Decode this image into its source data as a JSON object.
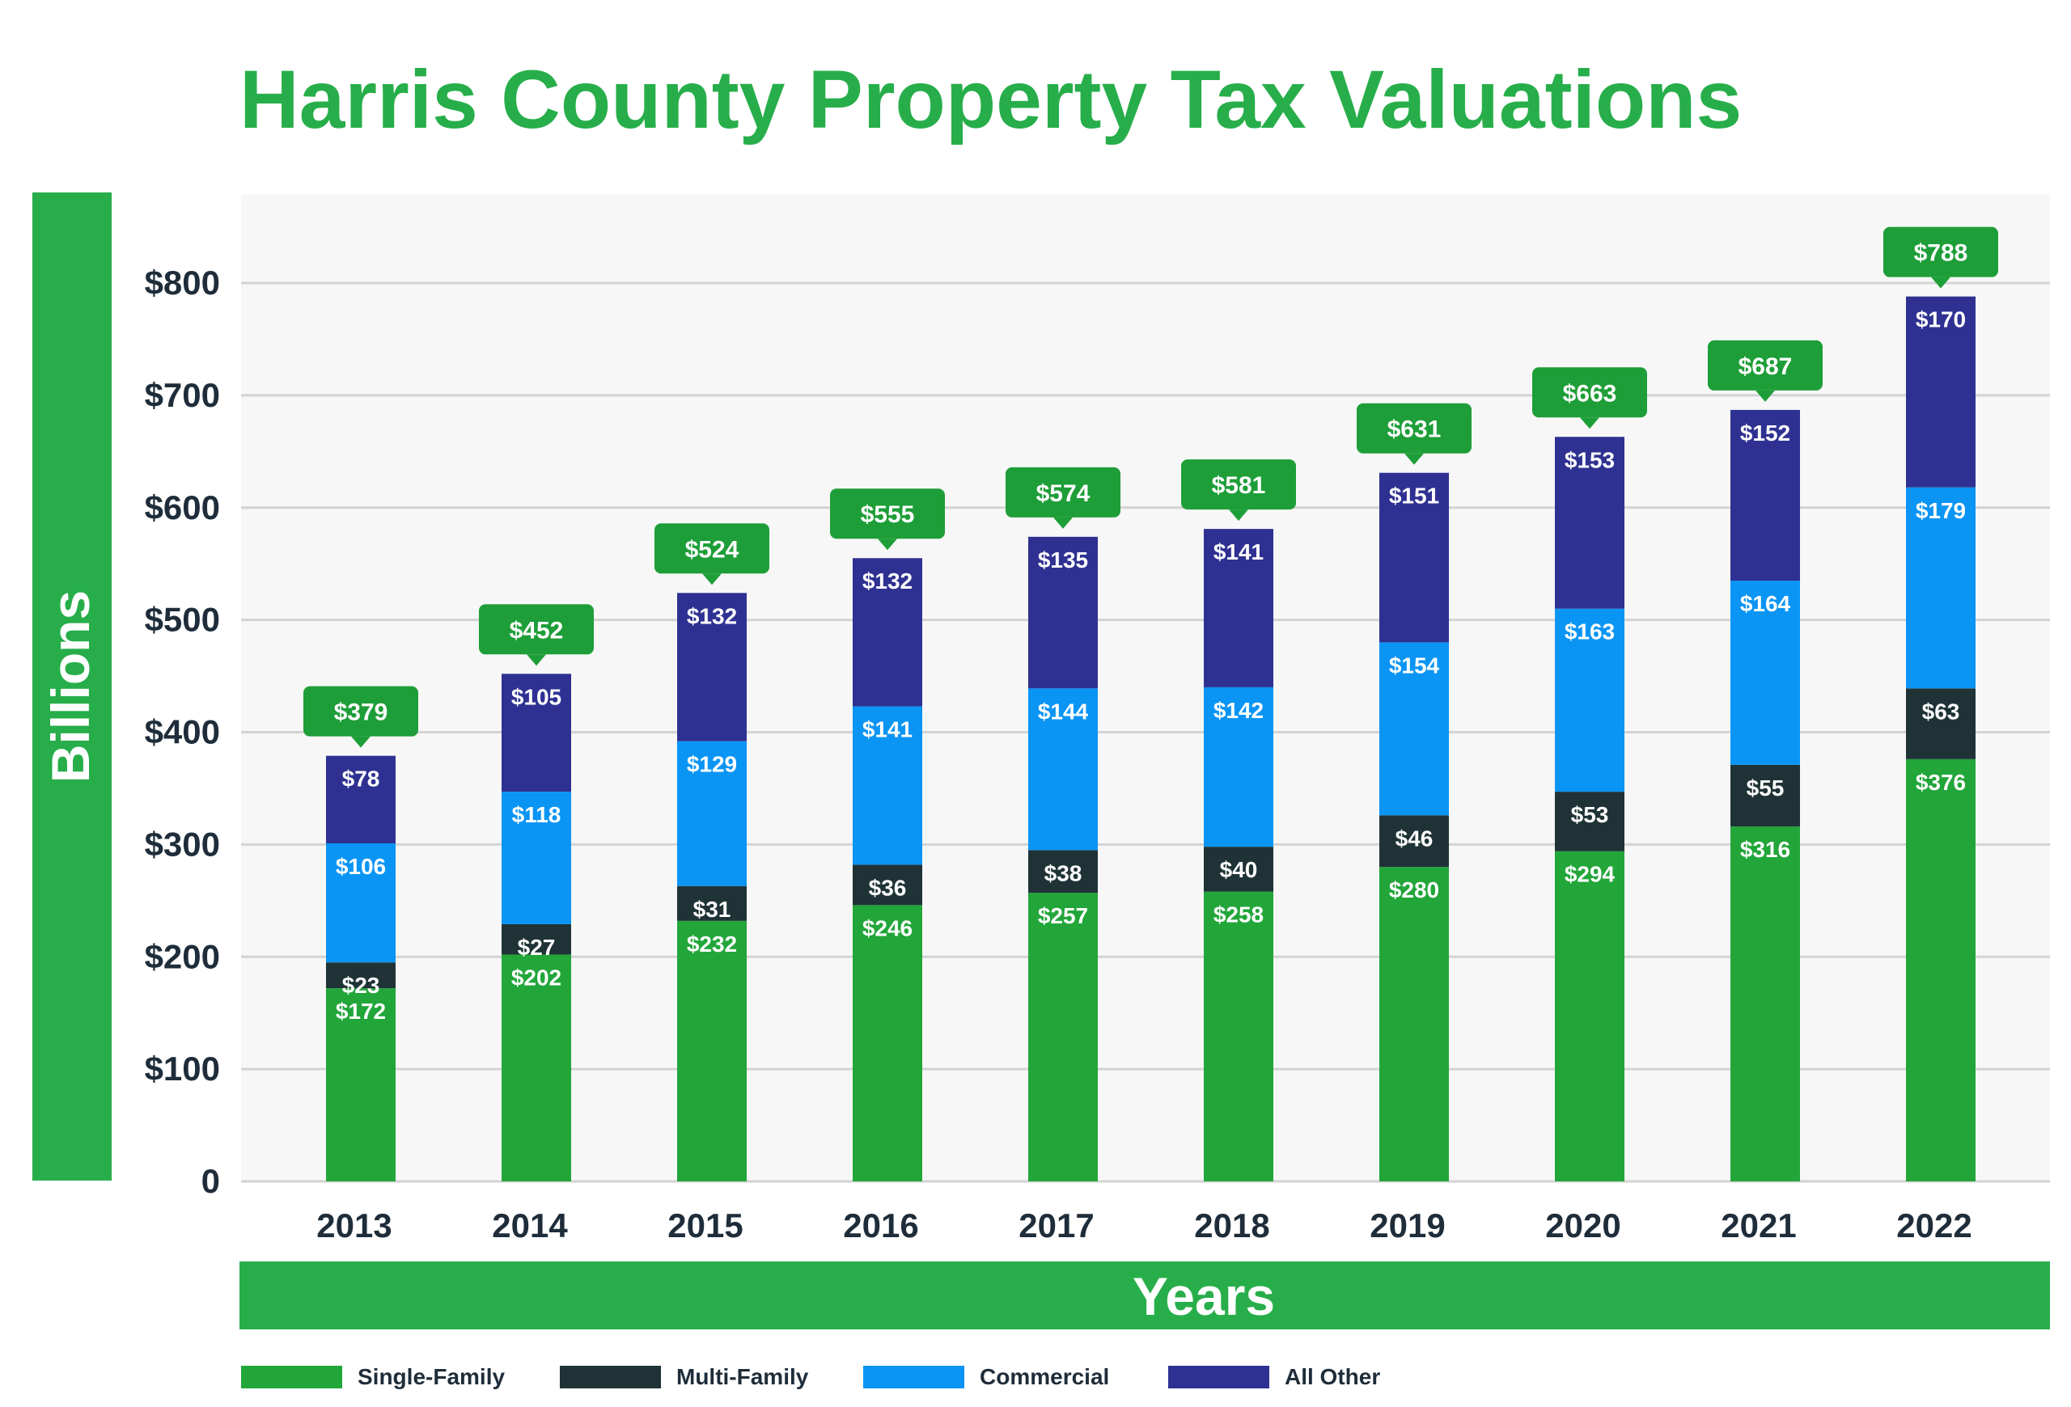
{
  "colors": {
    "title": "#27AE4A",
    "band": "#27AE4A",
    "plot_bg": "#F7F7F7",
    "grid": "#D3D3D3",
    "axis_text": "#1F2D3A",
    "callout": "#1E9E38",
    "label_text": "#FFFFFF"
  },
  "chart_data": {
    "type": "bar",
    "stacked": true,
    "title": "Harris County Property Tax Valuations",
    "xlabel": "Years",
    "ylabel": "Billions",
    "ylim": [
      0,
      850
    ],
    "yticks": [
      0,
      100,
      200,
      300,
      400,
      500,
      600,
      700,
      800
    ],
    "ytick_labels": [
      "0",
      "$100",
      "$200",
      "$300",
      "$400",
      "$500",
      "$600",
      "$700",
      "$800"
    ],
    "grid": true,
    "legend_position": "bottom-left",
    "categories": [
      "2013",
      "2014",
      "2015",
      "2016",
      "2017",
      "2018",
      "2019",
      "2020",
      "2021",
      "2022"
    ],
    "series": [
      {
        "name": "Single-Family",
        "color": "#22A63A",
        "values": [
          172,
          202,
          232,
          246,
          257,
          258,
          280,
          294,
          316,
          376
        ]
      },
      {
        "name": "Multi-Family",
        "color": "#1F3336",
        "values": [
          23,
          27,
          31,
          36,
          38,
          40,
          46,
          53,
          55,
          63
        ]
      },
      {
        "name": "Commercial",
        "color": "#0A95F5",
        "values": [
          106,
          118,
          129,
          141,
          144,
          142,
          154,
          163,
          164,
          179
        ]
      },
      {
        "name": "All Other",
        "color": "#2F3192",
        "values": [
          78,
          105,
          132,
          132,
          135,
          141,
          151,
          153,
          152,
          170
        ]
      }
    ],
    "totals": [
      379,
      452,
      524,
      555,
      574,
      581,
      631,
      663,
      687,
      788
    ],
    "currency_prefix": "$"
  }
}
